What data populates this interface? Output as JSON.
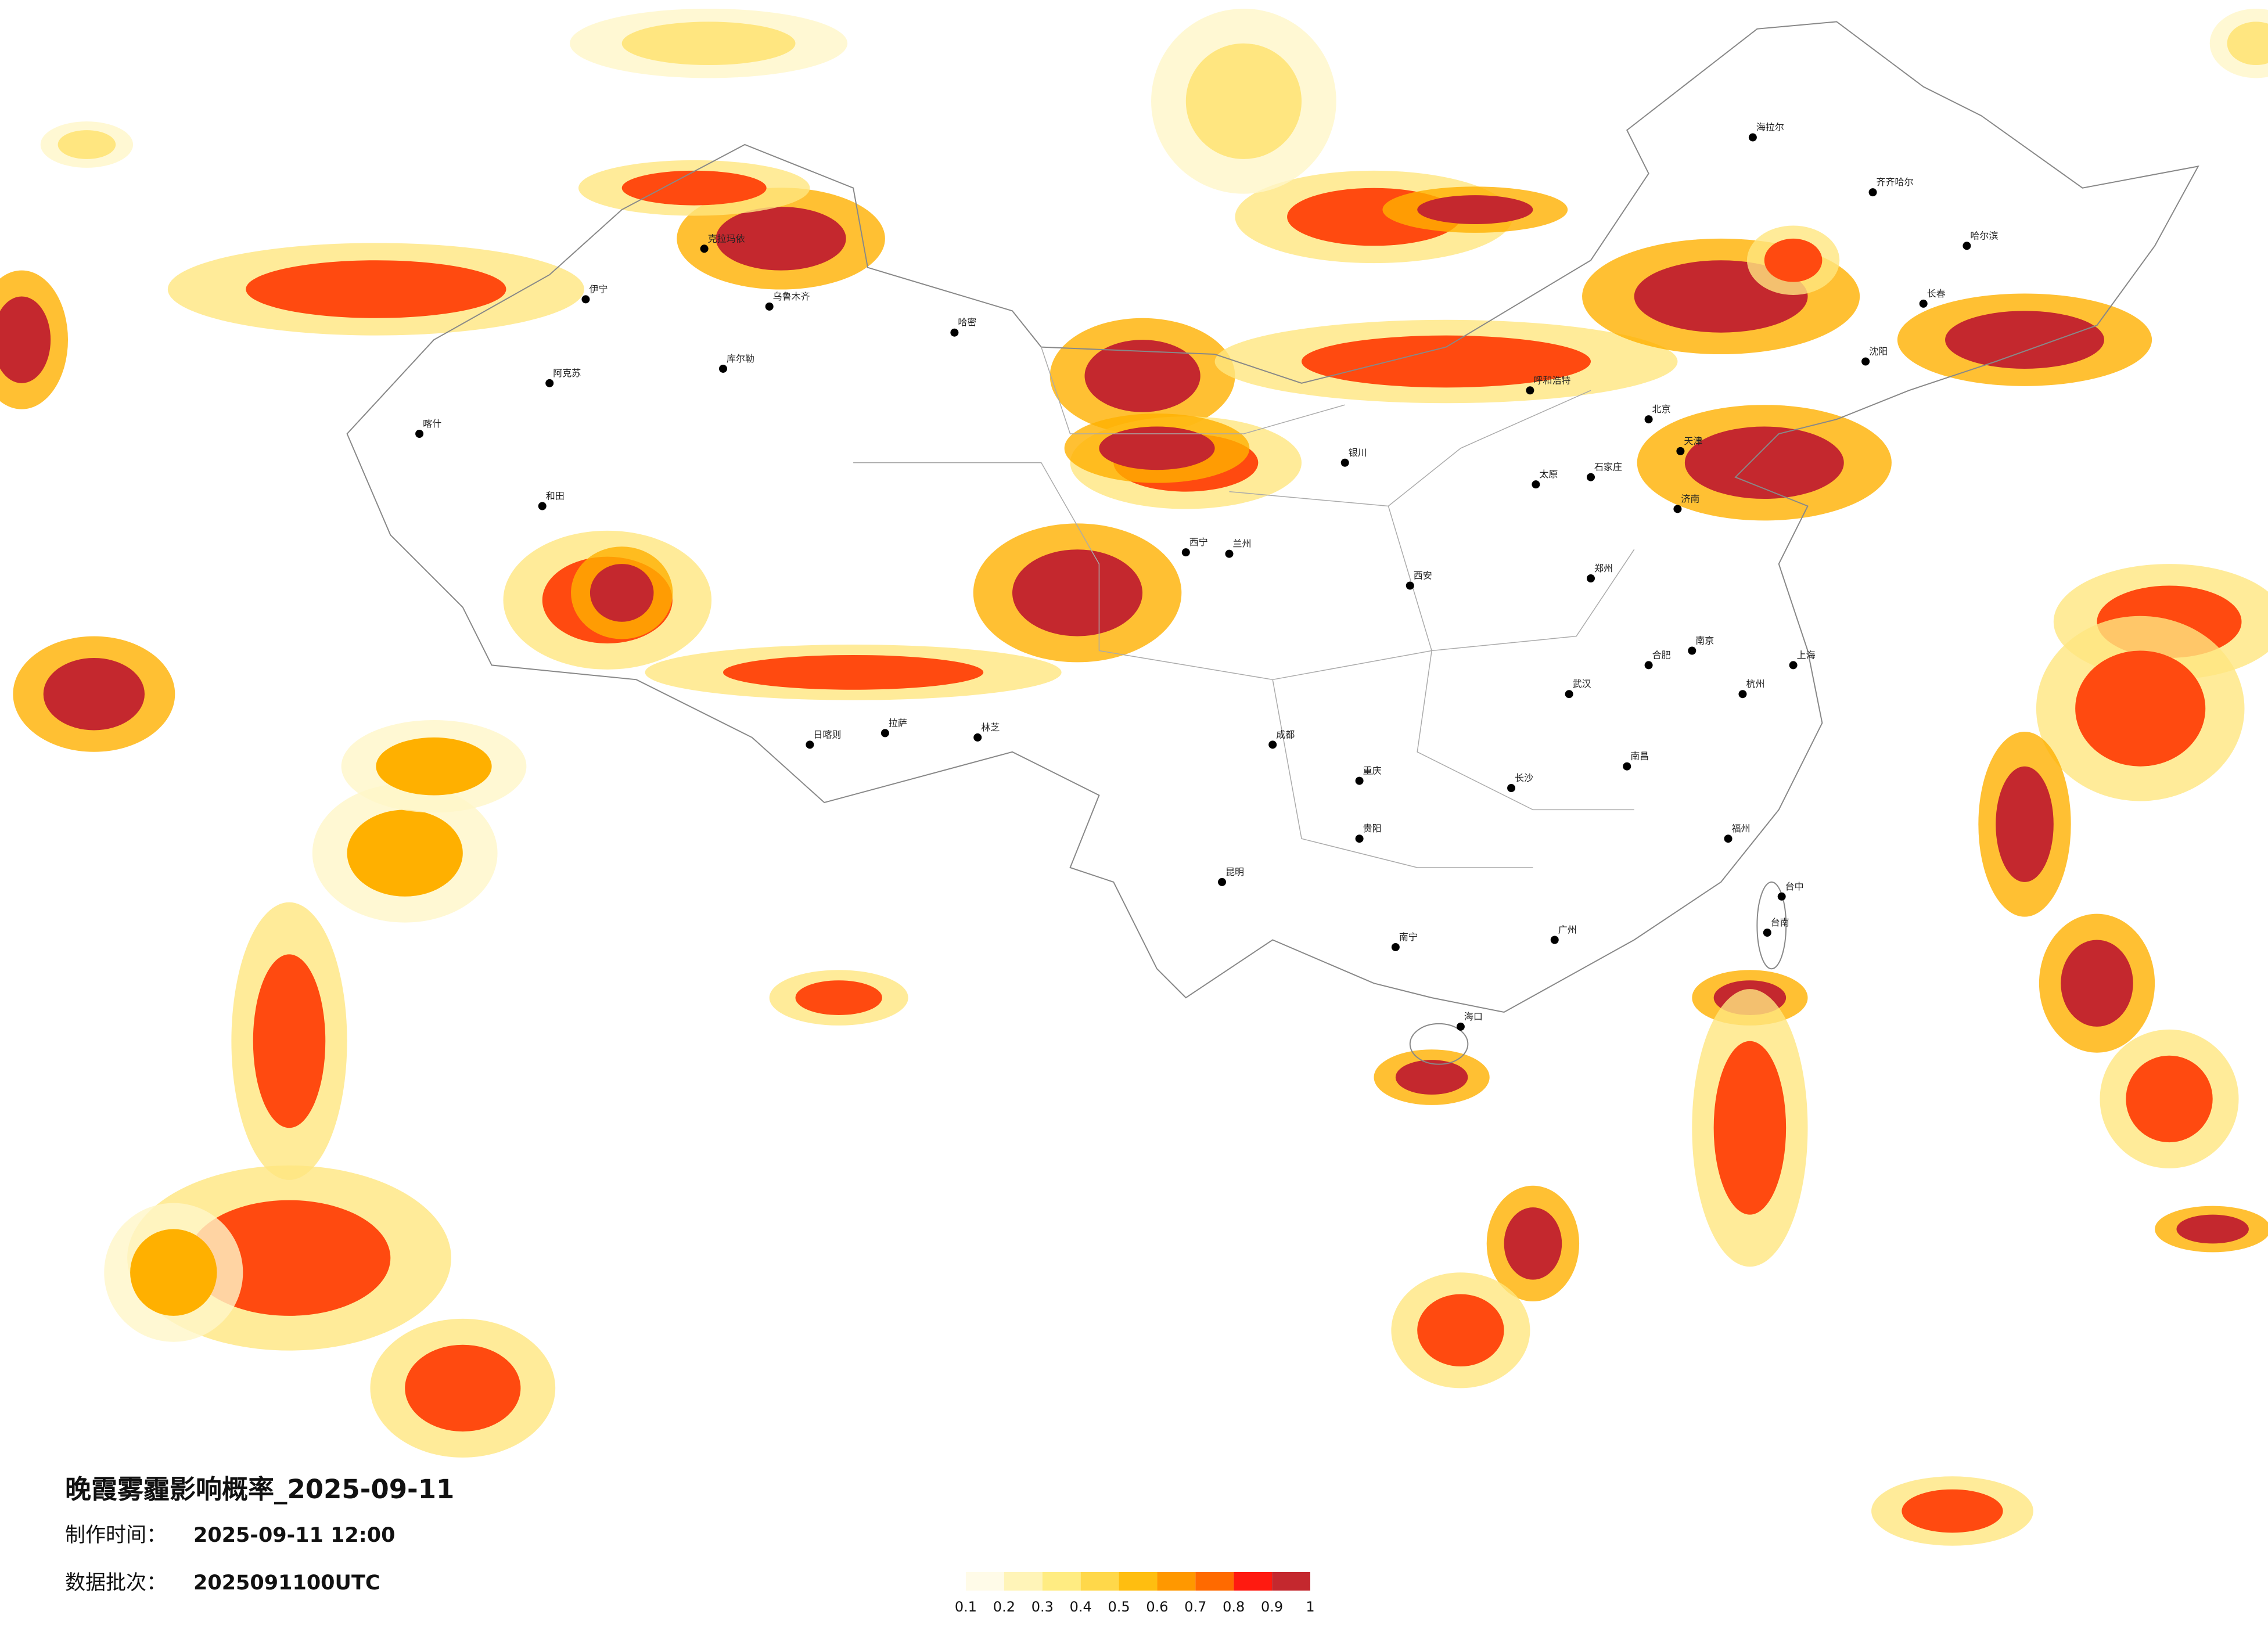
{
  "header": {
    "title": "晚霞雾霾影响概率_2025-09-11",
    "made_label": "制作时间：",
    "made_value": "2025-09-11 12:00",
    "batch_label": "数据批次：",
    "batch_value": "2025091100UTC"
  },
  "legend": {
    "ticks": [
      0.1,
      0.2,
      0.3,
      0.4,
      0.5,
      0.6,
      0.7,
      0.8,
      0.9,
      1
    ],
    "colors": [
      "#fffbe8",
      "#fff4b8",
      "#ffec82",
      "#ffd84a",
      "#ffbe10",
      "#ff9800",
      "#ff6a00",
      "#ff1a10",
      "#c4282e"
    ]
  },
  "cities": [
    "北京",
    "天津",
    "石家庄",
    "太原",
    "呼和浩特",
    "郑州",
    "济南",
    "西安",
    "银川",
    "兰州",
    "西宁",
    "成都",
    "重庆",
    "贵阳",
    "昆明",
    "南宁",
    "广州",
    "长沙",
    "武汉",
    "南昌",
    "福州",
    "杭州",
    "南京",
    "合肥",
    "上海",
    "哈尔滨",
    "长春",
    "沈阳",
    "海口",
    "台中",
    "台南",
    "乌鲁木齐",
    "克拉玛依",
    "伊宁",
    "阿克苏",
    "喀什",
    "和田",
    "库尔勒",
    "哈密",
    "拉萨",
    "日喀则",
    "林芝",
    "海拉尔",
    "齐齐哈尔"
  ]
}
